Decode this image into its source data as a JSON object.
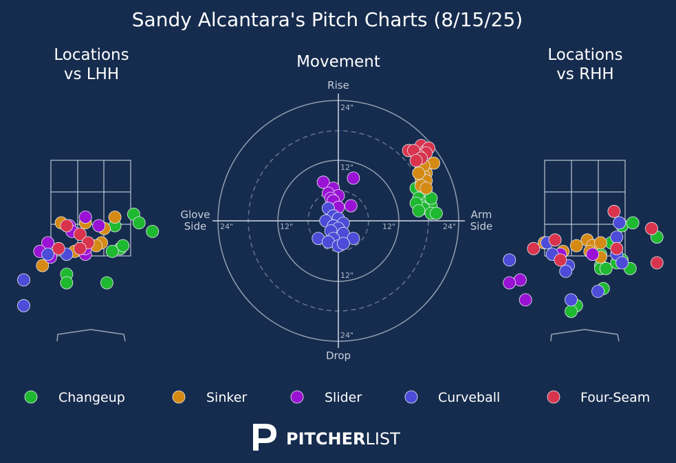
{
  "title": "Sandy Alcantara's Pitch Charts (8/15/25)",
  "panels": {
    "lhh": {
      "title_line1": "Locations",
      "title_line2": "vs LHH"
    },
    "movement": {
      "title": "Movement",
      "rise_label": "Rise",
      "drop_label": "Drop",
      "glove_label_line1": "Glove",
      "glove_label_line2": "Side",
      "arm_label_line1": "Arm",
      "arm_label_line2": "Side",
      "ring_labels": {
        "top_24": "24\"",
        "top_12": "12\"",
        "left_24": "24\"",
        "left_12": "12\"",
        "right_12": "12\"",
        "right_24": "24\"",
        "bottom_12": "12\"",
        "bottom_24": "24\""
      }
    },
    "rhh": {
      "title_line1": "Locations",
      "title_line2": "vs RHH"
    }
  },
  "colors": {
    "background": "#162c4e",
    "Changeup": "#1fb831",
    "Sinker": "#d48a14",
    "Slider": "#9a12d4",
    "Curveball": "#4c4cd8",
    "Four-Seam": "#d8344e"
  },
  "legend": [
    {
      "name": "Changeup",
      "color_key": "Changeup"
    },
    {
      "name": "Sinker",
      "color_key": "Sinker"
    },
    {
      "name": "Slider",
      "color_key": "Slider"
    },
    {
      "name": "Curveball",
      "color_key": "Curveball"
    },
    {
      "name": "Four-Seam",
      "color_key": "Four-Seam"
    }
  ],
  "brand": {
    "bold": "PITCHER",
    "light": "LIST"
  },
  "chart_data": [
    {
      "type": "scatter",
      "title": "Locations vs LHH",
      "xlim": [
        -3,
        3
      ],
      "ylim": [
        -0.5,
        5
      ],
      "series": [
        {
          "name": "Changeup",
          "points": [
            [
              1.6,
              3.7
            ],
            [
              1.8,
              3.4
            ],
            [
              2.3,
              3.1
            ],
            [
              0.9,
              3.3
            ],
            [
              1.1,
              2.5
            ],
            [
              1.2,
              2.6
            ],
            [
              0.8,
              2.4
            ],
            [
              -0.9,
              1.6
            ],
            [
              -0.9,
              1.3
            ],
            [
              0.6,
              1.3
            ]
          ]
        },
        {
          "name": "Sinker",
          "points": [
            [
              0.9,
              3.6
            ],
            [
              -1.1,
              3.4
            ],
            [
              -0.2,
              3.4
            ],
            [
              0.5,
              3.2
            ],
            [
              0.4,
              2.7
            ],
            [
              -0.6,
              2.4
            ],
            [
              -1.8,
              1.9
            ],
            [
              0.2,
              2.6
            ]
          ]
        },
        {
          "name": "Slider",
          "points": [
            [
              -0.2,
              3.6
            ],
            [
              -0.8,
              3.3
            ],
            [
              0.3,
              3.3
            ],
            [
              -0.7,
              3.1
            ],
            [
              -1.6,
              2.7
            ],
            [
              -1.9,
              2.4
            ],
            [
              -0.2,
              2.3
            ],
            [
              -1.5,
              2.2
            ],
            [
              -0.2,
              2.5
            ]
          ]
        },
        {
          "name": "Curveball",
          "points": [
            [
              -2.5,
              1.4
            ],
            [
              -2.5,
              0.5
            ],
            [
              -1.6,
              2.3
            ],
            [
              -0.9,
              2.3
            ]
          ]
        },
        {
          "name": "Four-Seam",
          "points": [
            [
              -0.9,
              3.3
            ],
            [
              -0.4,
              3.0
            ],
            [
              -1.2,
              2.5
            ],
            [
              -0.1,
              2.7
            ],
            [
              -0.4,
              2.5
            ]
          ]
        }
      ]
    },
    {
      "type": "scatter",
      "title": "Movement",
      "xlabel": "Glove Side / Arm Side",
      "ylabel": "Drop / Rise",
      "xlim": [
        -24,
        24
      ],
      "ylim": [
        -24,
        24
      ],
      "series": [
        {
          "name": "Changeup",
          "points": [
            [
              15.5,
              6.5
            ],
            [
              16.5,
              7.5
            ],
            [
              17,
              6
            ],
            [
              17.5,
              5.5
            ],
            [
              16,
              4.5
            ],
            [
              18,
              4
            ],
            [
              17.5,
              3.5
            ],
            [
              18.5,
              3
            ],
            [
              16.5,
              3
            ],
            [
              17,
              2.5
            ],
            [
              15.5,
              3.5
            ],
            [
              18.5,
              1.5
            ],
            [
              16,
              2
            ],
            [
              19.5,
              1.5
            ],
            [
              18.5,
              4.5
            ]
          ]
        },
        {
          "name": "Sinker",
          "points": [
            [
              16.5,
              10.5
            ],
            [
              17.5,
              9.5
            ],
            [
              17,
              9
            ],
            [
              16.5,
              8.5
            ],
            [
              17.5,
              8
            ],
            [
              16.5,
              7
            ],
            [
              19,
              11.5
            ],
            [
              17,
              11
            ],
            [
              16,
              9.5
            ],
            [
              17.5,
              6.5
            ]
          ]
        },
        {
          "name": "Slider",
          "points": [
            [
              -3,
              7.7
            ],
            [
              3,
              8.5
            ],
            [
              -1,
              6.5
            ],
            [
              -2,
              5.5
            ],
            [
              0,
              5
            ],
            [
              -1.5,
              4.5
            ],
            [
              -1,
              4
            ],
            [
              2.5,
              3
            ],
            [
              0,
              2.7
            ]
          ]
        },
        {
          "name": "Curveball",
          "points": [
            [
              -2,
              2.5
            ],
            [
              -1,
              1
            ],
            [
              0,
              0.5
            ],
            [
              -2.5,
              0
            ],
            [
              -1,
              -1
            ],
            [
              1,
              -0.5
            ],
            [
              0,
              -1.5
            ],
            [
              -1.5,
              -2
            ],
            [
              1,
              -2.5
            ],
            [
              -1,
              -3.5
            ],
            [
              -4,
              -3.5
            ],
            [
              -2,
              -4.2
            ],
            [
              3,
              -3.5
            ],
            [
              0,
              -5
            ],
            [
              1,
              -4.5
            ]
          ]
        },
        {
          "name": "Four-Seam",
          "points": [
            [
              16.5,
              15
            ],
            [
              17.5,
              14
            ],
            [
              18,
              14.5
            ],
            [
              17.5,
              13.5
            ],
            [
              16,
              13
            ],
            [
              14,
              14
            ],
            [
              15,
              14
            ],
            [
              16.5,
              12.5
            ],
            [
              15.5,
              12
            ]
          ]
        }
      ]
    },
    {
      "type": "scatter",
      "title": "Locations vs RHH",
      "xlim": [
        -3,
        3
      ],
      "ylim": [
        -0.5,
        5
      ],
      "series": [
        {
          "name": "Changeup",
          "points": [
            [
              1.4,
              3.3
            ],
            [
              1.8,
              3.4
            ],
            [
              2.7,
              2.9
            ],
            [
              1.0,
              2.7
            ],
            [
              0.4,
              2.6
            ],
            [
              0.6,
              2.3
            ],
            [
              0.6,
              1.9
            ],
            [
              0.6,
              1.8
            ],
            [
              0.8,
              1.8
            ],
            [
              1.2,
              2.0
            ],
            [
              1.4,
              2.1
            ],
            [
              1.7,
              1.8
            ],
            [
              0.7,
              1.1
            ],
            [
              -0.3,
              0.5
            ],
            [
              -0.5,
              0.3
            ]
          ]
        },
        {
          "name": "Sinker",
          "points": [
            [
              -1.5,
              2.7
            ],
            [
              0.1,
              2.8
            ],
            [
              0.3,
              2.6
            ],
            [
              0.6,
              2.7
            ],
            [
              0.2,
              2.4
            ],
            [
              -0.8,
              2.4
            ],
            [
              0.6,
              2.2
            ],
            [
              -0.3,
              2.6
            ]
          ]
        },
        {
          "name": "Slider",
          "points": [
            [
              -0.9,
              2.3
            ],
            [
              -2.4,
              1.4
            ],
            [
              -2.8,
              1.3
            ],
            [
              -2.2,
              0.7
            ],
            [
              0.3,
              2.3
            ]
          ]
        },
        {
          "name": "Curveball",
          "points": [
            [
              -2.8,
              2.1
            ],
            [
              -1.4,
              2.7
            ],
            [
              -1.2,
              2.3
            ],
            [
              -0.6,
              1.9
            ],
            [
              -0.7,
              1.7
            ],
            [
              1.3,
              3.4
            ],
            [
              1.2,
              2.9
            ],
            [
              1.2,
              2.3
            ],
            [
              1.4,
              2.0
            ],
            [
              0.5,
              1.0
            ],
            [
              -0.5,
              0.7
            ]
          ]
        },
        {
          "name": "Four-Seam",
          "points": [
            [
              1.1,
              3.8
            ],
            [
              -1.1,
              2.8
            ],
            [
              -1.9,
              2.5
            ],
            [
              -0.9,
              2.1
            ],
            [
              2.5,
              3.2
            ],
            [
              1.2,
              2.5
            ],
            [
              2.7,
              2.0
            ]
          ]
        }
      ]
    }
  ]
}
